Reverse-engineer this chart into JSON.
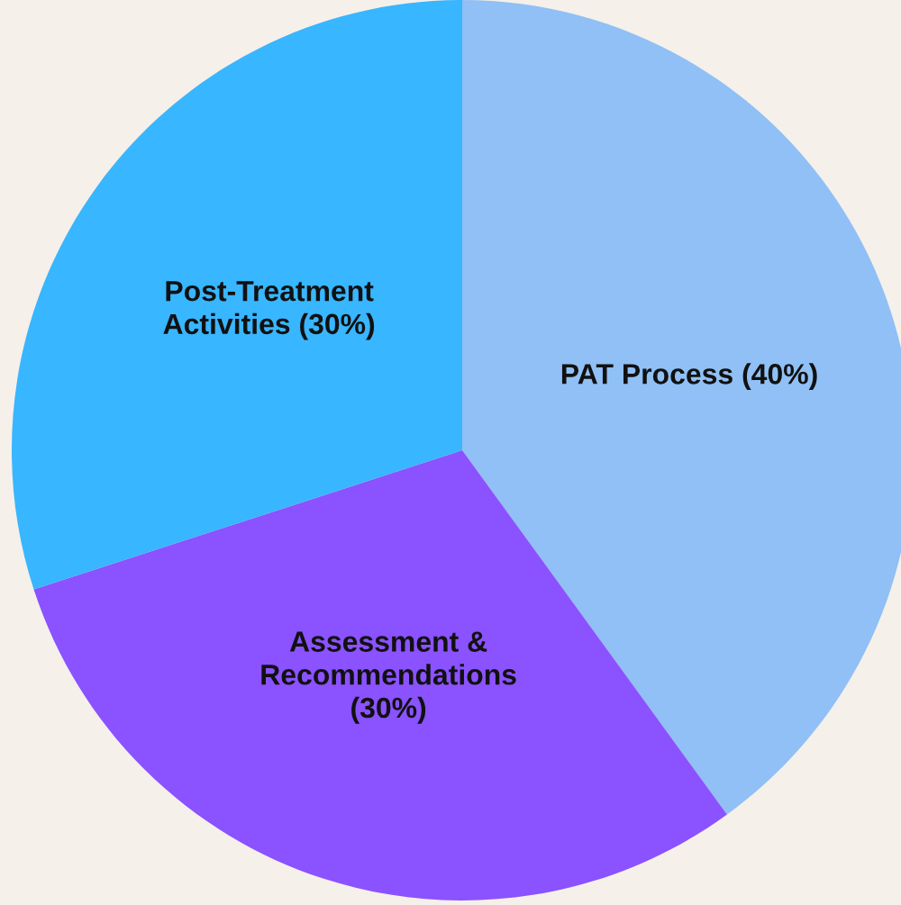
{
  "chart_data": {
    "type": "pie",
    "categories": [
      "PAT Process (40%)",
      "Assessment &\nRecommendations\n(30%)",
      "Post-Treatment\nActivities (30%)"
    ],
    "values": [
      40,
      30,
      30
    ],
    "colors": [
      "#90c0f5",
      "#8b52ff",
      "#38b6ff"
    ]
  }
}
